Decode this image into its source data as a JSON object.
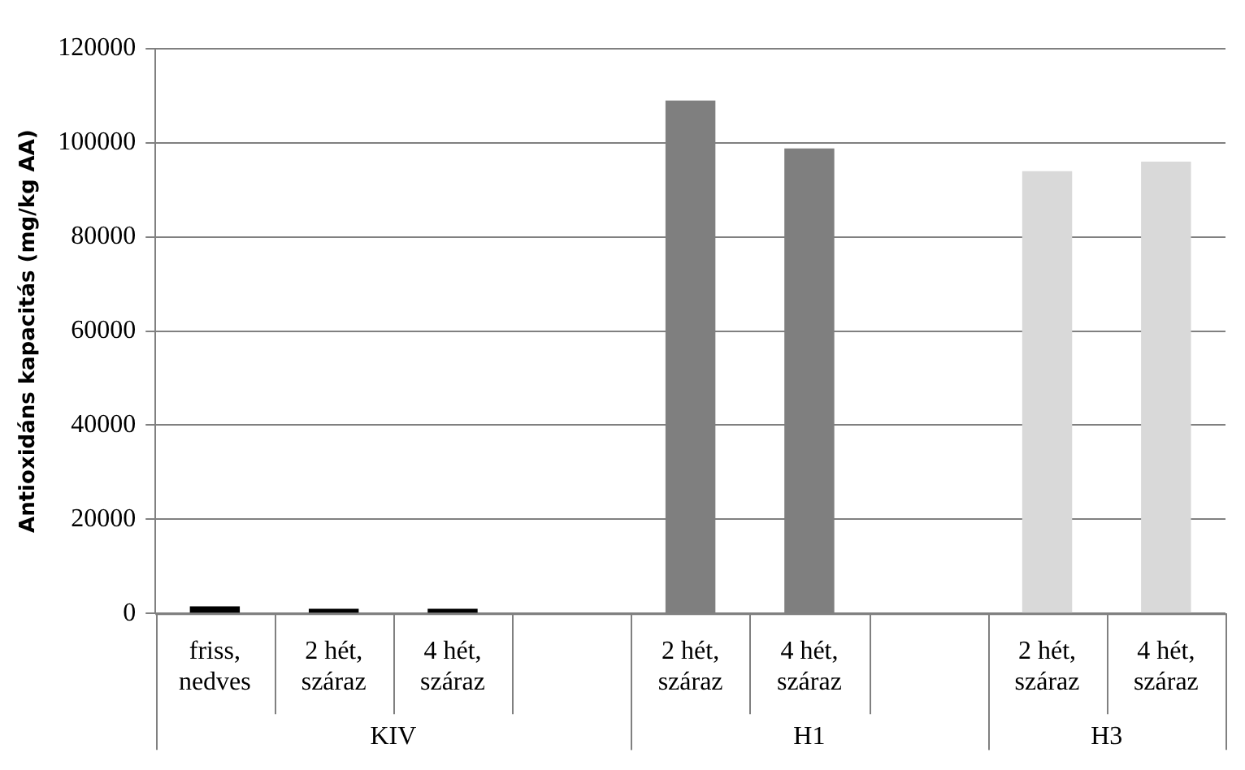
{
  "chart_data": {
    "type": "bar",
    "ylabel": "Antioxidáns kapacitás (mg/kg AA)",
    "categories": [
      "friss, nedves",
      "2 hét, száraz",
      "4 hét, száraz",
      null,
      "2 hét, száraz",
      "4 hét, száraz",
      null,
      "2 hét, száraz",
      "4 hét, száraz"
    ],
    "values": [
      1500,
      1000,
      1000,
      null,
      109000,
      98800,
      null,
      94000,
      96000
    ],
    "colors": [
      "#000000",
      "#000000",
      "#000000",
      "#ffffff",
      "#7f7f7f",
      "#7f7f7f",
      "#ffffff",
      "#d9d9d9",
      "#d9d9d9"
    ],
    "annotations": [
      "KIV",
      "H1",
      "H3"
    ],
    "ylim": [
      0,
      120000
    ],
    "yticks": [
      0,
      20000,
      40000,
      60000,
      80000,
      100000,
      120000
    ],
    "grid": "y",
    "legend": false
  }
}
